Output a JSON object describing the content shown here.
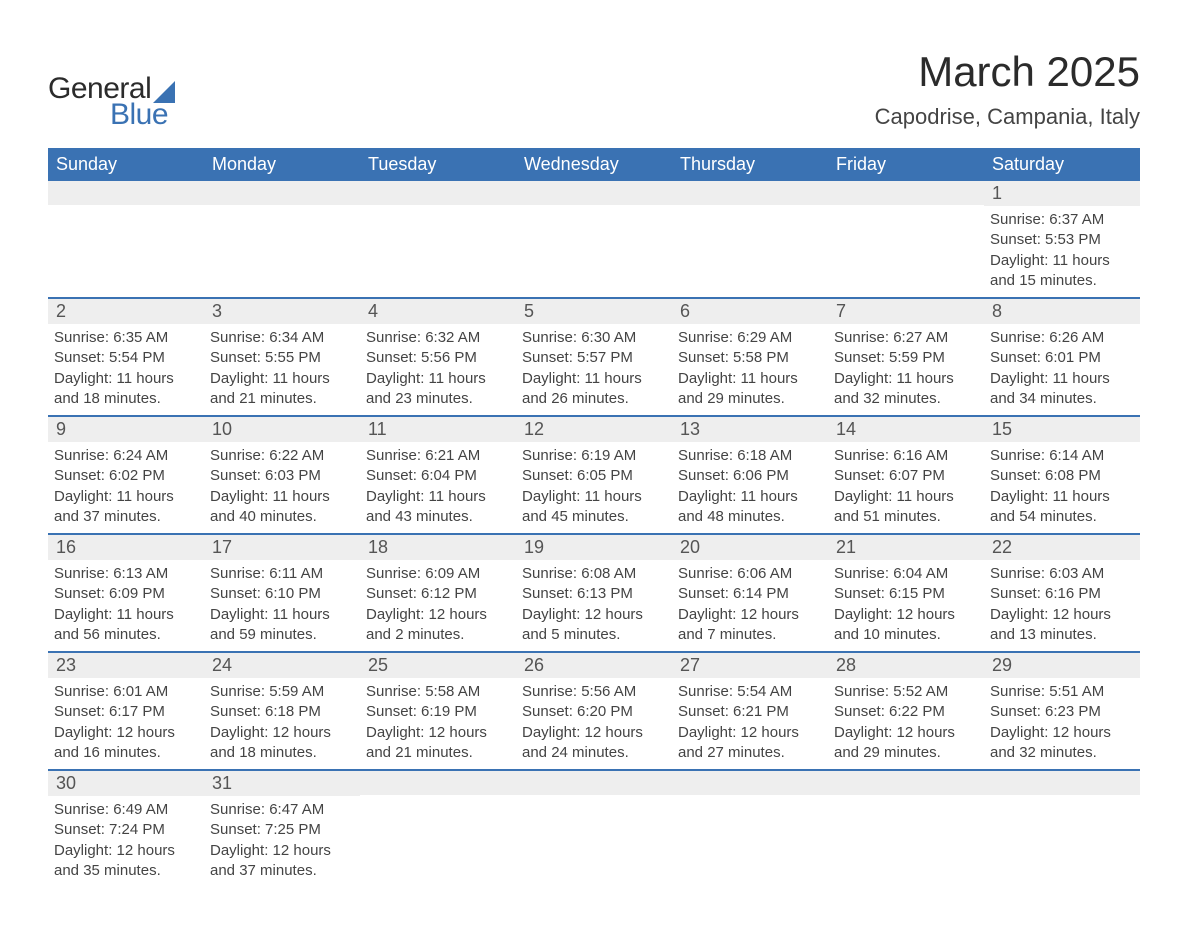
{
  "logo": {
    "general": "General",
    "blue": "Blue"
  },
  "title": "March 2025",
  "location": "Capodrise, Campania, Italy",
  "colors": {
    "header_bg": "#3a72b3",
    "header_text": "#ffffff",
    "daynum_bg": "#eeeeee",
    "border": "#3a72b3",
    "text": "#444444",
    "background": "#ffffff"
  },
  "layout": {
    "columns": 7,
    "rows": 6,
    "cell_font_size_pt": 11,
    "header_font_size_pt": 14,
    "title_font_size_pt": 32,
    "location_font_size_pt": 16
  },
  "day_headers": [
    "Sunday",
    "Monday",
    "Tuesday",
    "Wednesday",
    "Thursday",
    "Friday",
    "Saturday"
  ],
  "weeks": [
    [
      null,
      null,
      null,
      null,
      null,
      null,
      {
        "n": "1",
        "sr": "6:37 AM",
        "ss": "5:53 PM",
        "dh": "11",
        "dm": "15"
      }
    ],
    [
      {
        "n": "2",
        "sr": "6:35 AM",
        "ss": "5:54 PM",
        "dh": "11",
        "dm": "18"
      },
      {
        "n": "3",
        "sr": "6:34 AM",
        "ss": "5:55 PM",
        "dh": "11",
        "dm": "21"
      },
      {
        "n": "4",
        "sr": "6:32 AM",
        "ss": "5:56 PM",
        "dh": "11",
        "dm": "23"
      },
      {
        "n": "5",
        "sr": "6:30 AM",
        "ss": "5:57 PM",
        "dh": "11",
        "dm": "26"
      },
      {
        "n": "6",
        "sr": "6:29 AM",
        "ss": "5:58 PM",
        "dh": "11",
        "dm": "29"
      },
      {
        "n": "7",
        "sr": "6:27 AM",
        "ss": "5:59 PM",
        "dh": "11",
        "dm": "32"
      },
      {
        "n": "8",
        "sr": "6:26 AM",
        "ss": "6:01 PM",
        "dh": "11",
        "dm": "34"
      }
    ],
    [
      {
        "n": "9",
        "sr": "6:24 AM",
        "ss": "6:02 PM",
        "dh": "11",
        "dm": "37"
      },
      {
        "n": "10",
        "sr": "6:22 AM",
        "ss": "6:03 PM",
        "dh": "11",
        "dm": "40"
      },
      {
        "n": "11",
        "sr": "6:21 AM",
        "ss": "6:04 PM",
        "dh": "11",
        "dm": "43"
      },
      {
        "n": "12",
        "sr": "6:19 AM",
        "ss": "6:05 PM",
        "dh": "11",
        "dm": "45"
      },
      {
        "n": "13",
        "sr": "6:18 AM",
        "ss": "6:06 PM",
        "dh": "11",
        "dm": "48"
      },
      {
        "n": "14",
        "sr": "6:16 AM",
        "ss": "6:07 PM",
        "dh": "11",
        "dm": "51"
      },
      {
        "n": "15",
        "sr": "6:14 AM",
        "ss": "6:08 PM",
        "dh": "11",
        "dm": "54"
      }
    ],
    [
      {
        "n": "16",
        "sr": "6:13 AM",
        "ss": "6:09 PM",
        "dh": "11",
        "dm": "56"
      },
      {
        "n": "17",
        "sr": "6:11 AM",
        "ss": "6:10 PM",
        "dh": "11",
        "dm": "59"
      },
      {
        "n": "18",
        "sr": "6:09 AM",
        "ss": "6:12 PM",
        "dh": "12",
        "dm": "2"
      },
      {
        "n": "19",
        "sr": "6:08 AM",
        "ss": "6:13 PM",
        "dh": "12",
        "dm": "5"
      },
      {
        "n": "20",
        "sr": "6:06 AM",
        "ss": "6:14 PM",
        "dh": "12",
        "dm": "7"
      },
      {
        "n": "21",
        "sr": "6:04 AM",
        "ss": "6:15 PM",
        "dh": "12",
        "dm": "10"
      },
      {
        "n": "22",
        "sr": "6:03 AM",
        "ss": "6:16 PM",
        "dh": "12",
        "dm": "13"
      }
    ],
    [
      {
        "n": "23",
        "sr": "6:01 AM",
        "ss": "6:17 PM",
        "dh": "12",
        "dm": "16"
      },
      {
        "n": "24",
        "sr": "5:59 AM",
        "ss": "6:18 PM",
        "dh": "12",
        "dm": "18"
      },
      {
        "n": "25",
        "sr": "5:58 AM",
        "ss": "6:19 PM",
        "dh": "12",
        "dm": "21"
      },
      {
        "n": "26",
        "sr": "5:56 AM",
        "ss": "6:20 PM",
        "dh": "12",
        "dm": "24"
      },
      {
        "n": "27",
        "sr": "5:54 AM",
        "ss": "6:21 PM",
        "dh": "12",
        "dm": "27"
      },
      {
        "n": "28",
        "sr": "5:52 AM",
        "ss": "6:22 PM",
        "dh": "12",
        "dm": "29"
      },
      {
        "n": "29",
        "sr": "5:51 AM",
        "ss": "6:23 PM",
        "dh": "12",
        "dm": "32"
      }
    ],
    [
      {
        "n": "30",
        "sr": "6:49 AM",
        "ss": "7:24 PM",
        "dh": "12",
        "dm": "35"
      },
      {
        "n": "31",
        "sr": "6:47 AM",
        "ss": "7:25 PM",
        "dh": "12",
        "dm": "37"
      },
      null,
      null,
      null,
      null,
      null
    ]
  ],
  "labels": {
    "sunrise": "Sunrise: ",
    "sunset": "Sunset: ",
    "daylight_prefix": "Daylight: ",
    "hours_word": " hours",
    "and_word": "and ",
    "minutes_word": " minutes."
  }
}
